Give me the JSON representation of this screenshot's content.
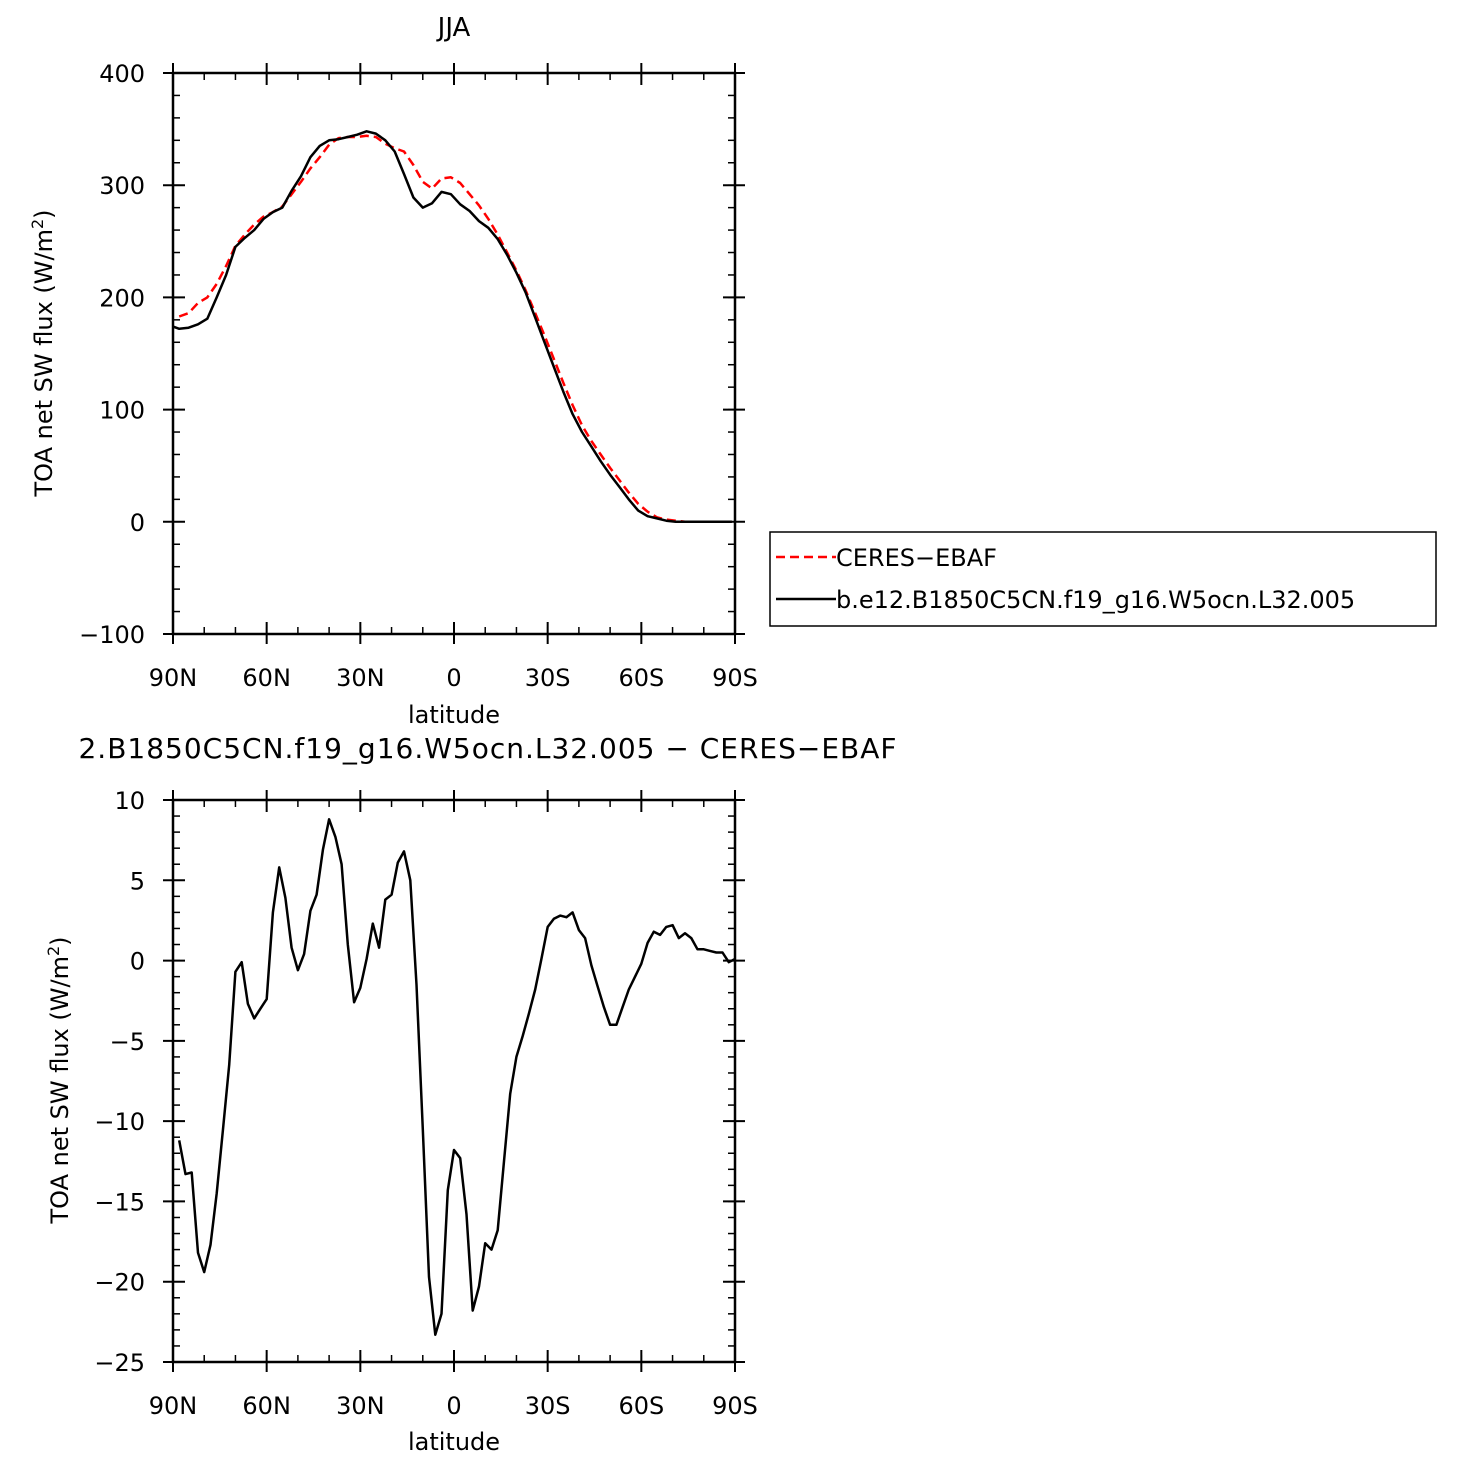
{
  "chart_data": [
    {
      "type": "line",
      "title": "JJA",
      "xlabel": "latitude",
      "ylabel_main": "TOA net SW flux (W/m",
      "ylabel_sup": "2",
      "ylabel_close": ")",
      "xlim": [
        90,
        -90
      ],
      "ylim": [
        -100,
        400
      ],
      "x_ticks": [
        90,
        60,
        30,
        0,
        -30,
        -60,
        -90
      ],
      "x_tick_labels": [
        "90N",
        "60N",
        "30N",
        "0",
        "30S",
        "60S",
        "90S"
      ],
      "y_ticks": [
        -100,
        0,
        100,
        200,
        300,
        400
      ],
      "y_tick_labels": [
        "−100",
        "0",
        "100",
        "200",
        "300",
        "400"
      ],
      "legend": {
        "position": "right",
        "entries": [
          "CERES−EBAF",
          "b.e12.B1850C5CN.f19_g16.W5ocn.L32.005"
        ]
      },
      "series": [
        {
          "name": "CERES−EBAF",
          "color": "#ff0000",
          "dash": "dashed",
          "x": [
            88,
            85,
            82,
            79,
            76,
            73,
            70,
            67,
            64,
            61,
            58,
            55,
            52,
            49,
            46,
            43,
            40,
            37,
            34,
            31,
            28,
            25,
            22,
            19,
            16,
            13,
            10,
            7,
            4,
            1,
            -2,
            -5,
            -8,
            -11,
            -14,
            -17,
            -20,
            -23,
            -26,
            -29,
            -32,
            -35,
            -38,
            -41,
            -44,
            -47,
            -50,
            -53,
            -56,
            -59,
            -62,
            -65,
            -68,
            -71,
            -74,
            -77,
            -80,
            -83,
            -86,
            -89
          ],
          "y": [
            183,
            186,
            195,
            200,
            212,
            228,
            246,
            256,
            265,
            272,
            276,
            281,
            292,
            303,
            315,
            325,
            336,
            342,
            343,
            343,
            344,
            343,
            337,
            333,
            330,
            318,
            303,
            297,
            306,
            307,
            302,
            292,
            282,
            270,
            256,
            240,
            224,
            206,
            186,
            166,
            145,
            124,
            104,
            86,
            72,
            60,
            48,
            37,
            26,
            16,
            9,
            4,
            2,
            1,
            0,
            0,
            0,
            0,
            0,
            0
          ]
        },
        {
          "name": "b.e12.B1850C5CN.f19_g16.W5ocn.L32.005",
          "color": "#000000",
          "dash": "solid",
          "x": [
            90,
            88,
            85,
            82,
            79,
            76,
            73,
            70,
            67,
            64,
            61,
            58,
            55,
            52,
            49,
            46,
            43,
            40,
            37,
            34,
            31,
            28,
            25,
            22,
            19,
            16,
            13,
            10,
            7,
            4,
            1,
            -2,
            -5,
            -8,
            -11,
            -14,
            -17,
            -20,
            -23,
            -26,
            -29,
            -32,
            -35,
            -38,
            -41,
            -44,
            -47,
            -50,
            -53,
            -56,
            -59,
            -62,
            -65,
            -68,
            -71,
            -74,
            -77,
            -80,
            -83,
            -86,
            -89
          ],
          "y": [
            174,
            172,
            173,
            176,
            181,
            200,
            220,
            245,
            253,
            260,
            270,
            276,
            280,
            295,
            308,
            325,
            335,
            340,
            341,
            343,
            345,
            348,
            346,
            340,
            330,
            310,
            289,
            280,
            284,
            294,
            292,
            283,
            277,
            268,
            262,
            252,
            238,
            222,
            204,
            182,
            160,
            138,
            116,
            96,
            80,
            67,
            54,
            42,
            31,
            20,
            10,
            5,
            3,
            1,
            0,
            0,
            0,
            0,
            0,
            0,
            0
          ]
        }
      ]
    },
    {
      "type": "line",
      "title": "2.B1850C5CN.f19_g16.W5ocn.L32.005 − CERES−EBAF",
      "xlabel": "latitude",
      "ylabel_main": "TOA net SW flux (W/m",
      "ylabel_sup": "2",
      "ylabel_close": ")",
      "xlim": [
        90,
        -90
      ],
      "ylim": [
        -25,
        10
      ],
      "x_ticks": [
        90,
        60,
        30,
        0,
        -30,
        -60,
        -90
      ],
      "x_tick_labels": [
        "90N",
        "60N",
        "30N",
        "0",
        "30S",
        "60S",
        "90S"
      ],
      "y_ticks": [
        -25,
        -20,
        -15,
        -10,
        -5,
        0,
        5,
        10
      ],
      "y_tick_labels": [
        "−25",
        "−20",
        "−15",
        "−10",
        "−5",
        "0",
        "5",
        "10"
      ],
      "series": [
        {
          "color": "#000000",
          "dash": "solid",
          "x": [
            88,
            86,
            84,
            82,
            80,
            78,
            76,
            74,
            72,
            70,
            68,
            66,
            64,
            62,
            60,
            58,
            56,
            54,
            52,
            50,
            48,
            46,
            44,
            42,
            40,
            38,
            36,
            34,
            32,
            30,
            28,
            26,
            24,
            22,
            20,
            18,
            16,
            14,
            12,
            10,
            8,
            6,
            4,
            2,
            0,
            -2,
            -4,
            -6,
            -8,
            -10,
            -12,
            -14,
            -16,
            -18,
            -20,
            -22,
            -24,
            -26,
            -28,
            -30,
            -32,
            -34,
            -36,
            -38,
            -40,
            -42,
            -44,
            -46,
            -48,
            -50,
            -52,
            -54,
            -56,
            -58,
            -60,
            -62,
            -64,
            -66,
            -68,
            -70,
            -72,
            -74,
            -76,
            -78,
            -80,
            -82,
            -84,
            -86,
            -88,
            -90
          ],
          "y": [
            -11.2,
            -13.3,
            -13.2,
            -18.2,
            -19.4,
            -17.7,
            -14.5,
            -10.5,
            -6.5,
            -0.7,
            -0.1,
            -2.7,
            -3.6,
            -3.0,
            -2.4,
            3.0,
            5.8,
            3.9,
            0.8,
            -0.6,
            0.4,
            3.1,
            4.1,
            6.9,
            8.8,
            7.7,
            6.0,
            1.0,
            -2.6,
            -1.7,
            0.1,
            2.3,
            0.8,
            3.8,
            4.1,
            6.1,
            6.8,
            5.0,
            -1.5,
            -10.5,
            -19.7,
            -23.3,
            -22.0,
            -14.3,
            -11.8,
            -12.3,
            -15.8,
            -21.8,
            -20.3,
            -17.6,
            -18.0,
            -16.8,
            -12.5,
            -8.3,
            -6.0,
            -4.7,
            -3.3,
            -1.8,
            0.1,
            2.1,
            2.6,
            2.8,
            2.7,
            3.0,
            1.9,
            1.4,
            -0.3,
            -1.6,
            -2.9,
            -4.0,
            -4.0,
            -2.9,
            -1.8,
            -1.0,
            -0.2,
            1.1,
            1.8,
            1.6,
            2.1,
            2.2,
            1.4,
            1.7,
            1.4,
            0.7,
            0.7,
            0.6,
            0.5,
            0.5,
            -0.1,
            0.1
          ]
        }
      ]
    }
  ]
}
